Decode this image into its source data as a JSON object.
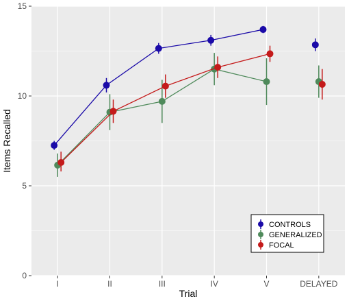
{
  "chart_data": {
    "type": "line",
    "xlabel": "Trial",
    "ylabel": "Items Recalled",
    "categories": [
      "I",
      "II",
      "III",
      "IV",
      "V",
      "DELAYED"
    ],
    "ylim": [
      0,
      15
    ],
    "yticks": [
      0,
      5,
      10,
      15
    ],
    "grid": true,
    "legend_position": "bottom-right",
    "connected_points": 5,
    "series": [
      {
        "name": "CONTROLS",
        "color": "#1a0aa8",
        "values": [
          7.25,
          10.6,
          12.65,
          13.1,
          13.7,
          12.85
        ],
        "error_lower": [
          7.0,
          10.2,
          12.35,
          12.8,
          13.5,
          12.5
        ],
        "error_upper": [
          7.5,
          11.0,
          12.95,
          13.4,
          13.9,
          13.2
        ]
      },
      {
        "name": "GENERALIZED",
        "color": "#4f8a5b",
        "values": [
          6.15,
          9.1,
          9.7,
          11.5,
          10.8,
          10.8
        ],
        "error_lower": [
          5.5,
          8.1,
          8.5,
          10.6,
          9.5,
          9.9
        ],
        "error_upper": [
          6.8,
          10.1,
          10.9,
          12.4,
          12.1,
          11.7
        ]
      },
      {
        "name": "FOCAL",
        "color": "#c41a1a",
        "values": [
          6.3,
          9.15,
          10.55,
          11.6,
          12.35,
          10.65
        ],
        "error_lower": [
          5.8,
          8.5,
          9.9,
          11.0,
          11.9,
          9.8
        ],
        "error_upper": [
          6.9,
          9.8,
          11.2,
          12.2,
          12.8,
          11.5
        ]
      }
    ]
  }
}
